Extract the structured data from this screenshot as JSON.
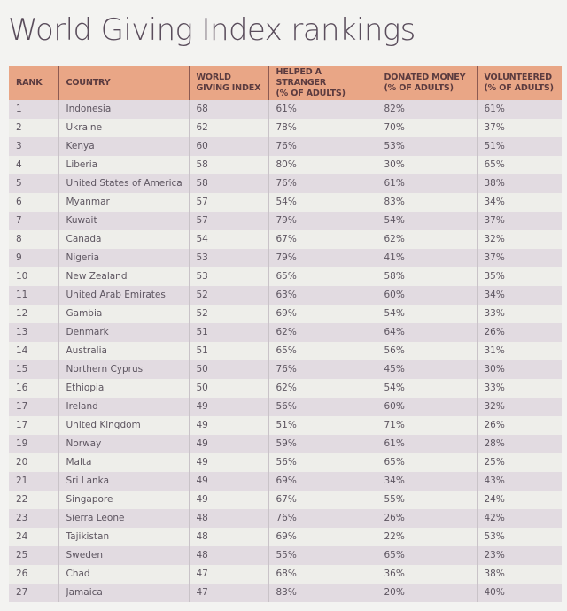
{
  "page": {
    "title": "World Giving Index rankings"
  },
  "table": {
    "headers": {
      "rank": "RANK",
      "country": "COUNTRY",
      "index_line1": "WORLD",
      "index_line2": "GIVING INDEX",
      "helped_line1": "HELPED A STRANGER",
      "helped_line2": "(% OF ADULTS)",
      "donated_line1": "DONATED MONEY",
      "donated_line2": "(% OF ADULTS)",
      "volunteered_line1": "VOLUNTEERED",
      "volunteered_line2": "(% OF ADULTS)"
    },
    "rows": [
      {
        "rank": "1",
        "country": "Indonesia",
        "index": "68",
        "helped": "61%",
        "donated": "82%",
        "volunteered": "61%"
      },
      {
        "rank": "2",
        "country": "Ukraine",
        "index": "62",
        "helped": "78%",
        "donated": "70%",
        "volunteered": "37%"
      },
      {
        "rank": "3",
        "country": "Kenya",
        "index": "60",
        "helped": "76%",
        "donated": "53%",
        "volunteered": "51%"
      },
      {
        "rank": "4",
        "country": "Liberia",
        "index": "58",
        "helped": "80%",
        "donated": "30%",
        "volunteered": "65%"
      },
      {
        "rank": "5",
        "country": "United States of America",
        "index": "58",
        "helped": "76%",
        "donated": "61%",
        "volunteered": "38%"
      },
      {
        "rank": "6",
        "country": "Myanmar",
        "index": "57",
        "helped": "54%",
        "donated": "83%",
        "volunteered": "34%"
      },
      {
        "rank": "7",
        "country": "Kuwait",
        "index": "57",
        "helped": "79%",
        "donated": "54%",
        "volunteered": "37%"
      },
      {
        "rank": "8",
        "country": "Canada",
        "index": "54",
        "helped": "67%",
        "donated": "62%",
        "volunteered": "32%"
      },
      {
        "rank": "9",
        "country": "Nigeria",
        "index": "53",
        "helped": "79%",
        "donated": "41%",
        "volunteered": "37%"
      },
      {
        "rank": "10",
        "country": "New Zealand",
        "index": "53",
        "helped": "65%",
        "donated": "58%",
        "volunteered": "35%"
      },
      {
        "rank": "11",
        "country": "United Arab Emirates",
        "index": "52",
        "helped": "63%",
        "donated": "60%",
        "volunteered": "34%"
      },
      {
        "rank": "12",
        "country": "Gambia",
        "index": "52",
        "helped": "69%",
        "donated": "54%",
        "volunteered": "33%"
      },
      {
        "rank": "13",
        "country": "Denmark",
        "index": "51",
        "helped": "62%",
        "donated": "64%",
        "volunteered": "26%"
      },
      {
        "rank": "14",
        "country": "Australia",
        "index": "51",
        "helped": "65%",
        "donated": "56%",
        "volunteered": "31%"
      },
      {
        "rank": "15",
        "country": "Northern Cyprus",
        "index": "50",
        "helped": "76%",
        "donated": "45%",
        "volunteered": "30%"
      },
      {
        "rank": "16",
        "country": "Ethiopia",
        "index": "50",
        "helped": "62%",
        "donated": "54%",
        "volunteered": "33%"
      },
      {
        "rank": "17",
        "country": "Ireland",
        "index": "49",
        "helped": "56%",
        "donated": "60%",
        "volunteered": "32%"
      },
      {
        "rank": "17",
        "country": "United Kingdom",
        "index": "49",
        "helped": "51%",
        "donated": "71%",
        "volunteered": "26%"
      },
      {
        "rank": "19",
        "country": "Norway",
        "index": "49",
        "helped": "59%",
        "donated": "61%",
        "volunteered": "28%"
      },
      {
        "rank": "20",
        "country": "Malta",
        "index": "49",
        "helped": "56%",
        "donated": "65%",
        "volunteered": "25%"
      },
      {
        "rank": "21",
        "country": "Sri Lanka",
        "index": "49",
        "helped": "69%",
        "donated": "34%",
        "volunteered": "43%"
      },
      {
        "rank": "22",
        "country": "Singapore",
        "index": "49",
        "helped": "67%",
        "donated": "55%",
        "volunteered": "24%"
      },
      {
        "rank": "23",
        "country": "Sierra Leone",
        "index": "48",
        "helped": "76%",
        "donated": "26%",
        "volunteered": "42%"
      },
      {
        "rank": "24",
        "country": "Tajikistan",
        "index": "48",
        "helped": "69%",
        "donated": "22%",
        "volunteered": "53%"
      },
      {
        "rank": "25",
        "country": "Sweden",
        "index": "48",
        "helped": "55%",
        "donated": "65%",
        "volunteered": "23%"
      },
      {
        "rank": "26",
        "country": "Chad",
        "index": "47",
        "helped": "68%",
        "donated": "36%",
        "volunteered": "38%"
      },
      {
        "rank": "27",
        "country": "Jamaica",
        "index": "47",
        "helped": "83%",
        "donated": "20%",
        "volunteered": "40%"
      }
    ]
  },
  "colors": {
    "header_bg": "#e9a686",
    "row_odd_bg": "#e2dbe1",
    "row_even_bg": "#eeeeea",
    "title_color": "#5a4d5c"
  }
}
